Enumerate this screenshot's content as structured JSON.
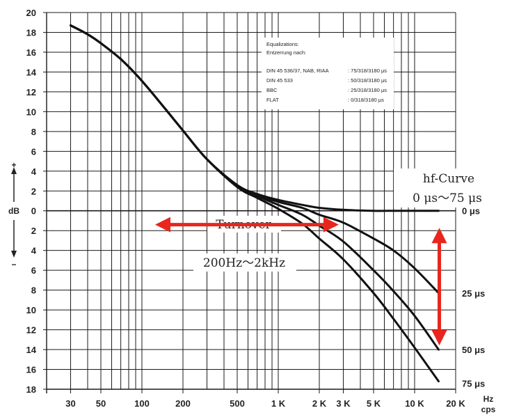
{
  "chart_data": {
    "type": "line",
    "title": "",
    "xlabel": "Hz cps",
    "xlabel_line1": "Hz",
    "xlabel_line2": "cps",
    "ylabel": "dB",
    "y_plus": "+",
    "y_minus": "−",
    "x_scale": "log",
    "xlim": [
      20,
      20000
    ],
    "ylim": [
      -18,
      20
    ],
    "grid": true,
    "x_ticks": [
      {
        "value": 30,
        "label": "30"
      },
      {
        "value": 50,
        "label": "50"
      },
      {
        "value": 100,
        "label": "100"
      },
      {
        "value": 200,
        "label": "200"
      },
      {
        "value": 500,
        "label": "500"
      },
      {
        "value": 1000,
        "label": "1 K"
      },
      {
        "value": 2000,
        "label": "2 K"
      },
      {
        "value": 3000,
        "label": "3 K"
      },
      {
        "value": 5000,
        "label": "5 K"
      },
      {
        "value": 10000,
        "label": "10 K"
      },
      {
        "value": 20000,
        "label": "20 K"
      }
    ],
    "x_grid_values": [
      30,
      40,
      50,
      60,
      70,
      80,
      90,
      100,
      200,
      300,
      400,
      500,
      600,
      700,
      800,
      900,
      1000,
      2000,
      3000,
      4000,
      5000,
      6000,
      7000,
      8000,
      9000,
      10000,
      20000
    ],
    "y_ticks": [
      {
        "value": 20,
        "label": "20"
      },
      {
        "value": 18,
        "label": "18"
      },
      {
        "value": 16,
        "label": "16"
      },
      {
        "value": 14,
        "label": "14"
      },
      {
        "value": 12,
        "label": "12"
      },
      {
        "value": 10,
        "label": "10"
      },
      {
        "value": 8,
        "label": "8"
      },
      {
        "value": 6,
        "label": "6"
      },
      {
        "value": 4,
        "label": "4"
      },
      {
        "value": 2,
        "label": "2"
      },
      {
        "value": 0,
        "label": "0"
      },
      {
        "value": -2,
        "label": "2"
      },
      {
        "value": -4,
        "label": "4"
      },
      {
        "value": -6,
        "label": "6"
      },
      {
        "value": -8,
        "label": "8"
      },
      {
        "value": -10,
        "label": "10"
      },
      {
        "value": -12,
        "label": "12"
      },
      {
        "value": -14,
        "label": "14"
      },
      {
        "value": -16,
        "label": "16"
      },
      {
        "value": -18,
        "label": "18"
      }
    ],
    "series": [
      {
        "name": "0 μs",
        "x": [
          30,
          40,
          50,
          70,
          100,
          150,
          200,
          300,
          500,
          700,
          1000,
          1500,
          2000,
          3000,
          5000,
          7000,
          10000,
          15000
        ],
        "y": [
          18.7,
          17.8,
          16.9,
          15.3,
          13.1,
          10.2,
          8.1,
          5.2,
          2.6,
          1.7,
          1.1,
          0.6,
          0.3,
          0.1,
          0.0,
          0.0,
          0.0,
          0.0
        ]
      },
      {
        "name": "25 μs",
        "x": [
          30,
          40,
          50,
          70,
          100,
          150,
          200,
          300,
          500,
          700,
          1000,
          1500,
          2000,
          3000,
          5000,
          7000,
          10000,
          15000
        ],
        "y": [
          18.7,
          17.8,
          16.9,
          15.3,
          13.1,
          10.2,
          8.1,
          5.2,
          2.5,
          1.6,
          0.9,
          0.3,
          -0.4,
          -1.2,
          -2.8,
          -4.0,
          -5.8,
          -8.3
        ]
      },
      {
        "name": "50 μs",
        "x": [
          30,
          40,
          50,
          70,
          100,
          150,
          200,
          300,
          500,
          700,
          1000,
          1500,
          2000,
          3000,
          5000,
          7000,
          10000,
          15000
        ],
        "y": [
          18.7,
          17.8,
          16.9,
          15.3,
          13.1,
          10.2,
          8.1,
          5.2,
          2.5,
          1.5,
          0.6,
          -0.4,
          -1.5,
          -3.1,
          -6.0,
          -8.1,
          -10.6,
          -14.0
        ]
      },
      {
        "name": "75 μs",
        "x": [
          30,
          40,
          50,
          70,
          100,
          150,
          200,
          300,
          500,
          700,
          1000,
          1500,
          2000,
          3000,
          5000,
          7000,
          10000,
          15000
        ],
        "y": [
          18.7,
          17.8,
          16.9,
          15.3,
          13.1,
          10.2,
          8.1,
          5.2,
          2.4,
          1.3,
          0.2,
          -1.3,
          -2.8,
          -4.9,
          -8.3,
          -10.9,
          -13.8,
          -17.2
        ]
      }
    ],
    "curve_labels": [
      {
        "text": "0 μs",
        "y": 0
      },
      {
        "text": "25 μs",
        "y": -8.3
      },
      {
        "text": "50 μs",
        "y": -14
      },
      {
        "text": "75 μs",
        "y": -17.4
      }
    ],
    "legend": {
      "title1": "Equalizations:",
      "title2": "Entzerrung nach:",
      "rows": [
        {
          "name": "DIN 45 536/37, NAB, RIAA",
          "value": ": 75/318/3180 μs"
        },
        {
          "name": "DIN 45 533",
          "value": ": 50/318/3180 μs"
        },
        {
          "name": "BBC",
          "value": ": 25/318/3180 μs"
        },
        {
          "name": "FLAT",
          "value": ": 0/318/3180 μs"
        }
      ]
    },
    "annotations": {
      "hf_title": "hf-Curve",
      "hf_range": "0 μs～75 μs",
      "turnover_title": "Turnover",
      "turnover_range": "200Hz～2kHz",
      "turnover_arrow_x": [
        200,
        2000
      ],
      "turnover_arrow_y": -1.4,
      "hf_arrow_x": 15000,
      "hf_arrow_y": [
        -2,
        -14
      ]
    },
    "colors": {
      "curve": "#111111",
      "grid": "#1a1a1a",
      "arrow": "#e8261d"
    }
  }
}
